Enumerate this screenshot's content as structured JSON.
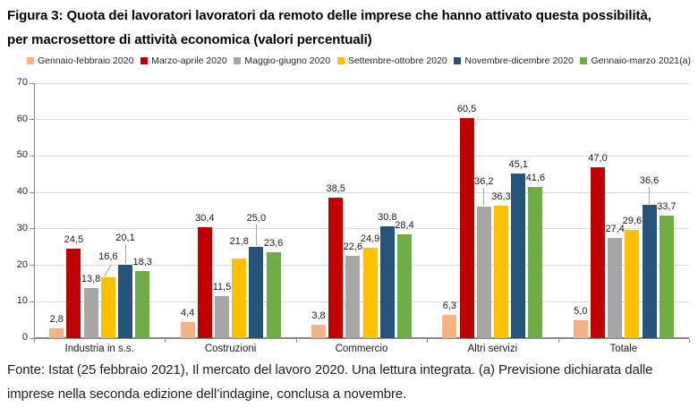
{
  "figure": {
    "title": "Figura 3: Quota dei lavoratori lavoratori da remoto delle imprese che hanno attivato questa possibilità, per macrosettore di attività economica (valori percentuali)"
  },
  "source_note": "Fonte: Istat (25 febbraio 2021), Il mercato del lavoro 2020. Una lettura integrata. (a) Previsione dichiarata dalle imprese nella seconda edizione dell’indagine, conclusa a novembre.",
  "chart_data": {
    "type": "bar",
    "title": "Quota dei lavoratori da remoto delle imprese che hanno attivato questa possibilità, per macrosettore di attività economica",
    "categories": [
      "Industria in s.s.",
      "Costruzioni",
      "Commercio",
      "Altri servizi",
      "Totale"
    ],
    "series": [
      {
        "name": "Gennaio-febbraio 2020",
        "color": "#F4B183",
        "values": [
          2.8,
          4.4,
          3.8,
          6.3,
          5.0
        ]
      },
      {
        "name": "Marzo-aprile 2020",
        "color": "#C00000",
        "values": [
          24.5,
          30.4,
          38.5,
          60.5,
          47.0
        ]
      },
      {
        "name": "Maggio-giugno 2020",
        "color": "#A6A6A6",
        "values": [
          13.8,
          11.5,
          22.6,
          36.2,
          27.4
        ]
      },
      {
        "name": "Settembre-ottobre 2020",
        "color": "#FFC000",
        "values": [
          16.6,
          21.8,
          24.9,
          36.3,
          29.6
        ]
      },
      {
        "name": "Novembre-dicembre 2020",
        "color": "#265379",
        "values": [
          20.1,
          25.0,
          30.8,
          45.1,
          36.6
        ]
      },
      {
        "name": "Gennaio-marzo 2021(a)",
        "color": "#70AD47",
        "values": [
          18.3,
          23.6,
          28.4,
          41.6,
          33.7
        ]
      }
    ],
    "ylim": [
      0,
      70
    ],
    "yticks": [
      0,
      10,
      20,
      30,
      40,
      50,
      60,
      70
    ],
    "grid": true,
    "legend_position": "top",
    "value_labels": true,
    "decimal_separator": ","
  }
}
